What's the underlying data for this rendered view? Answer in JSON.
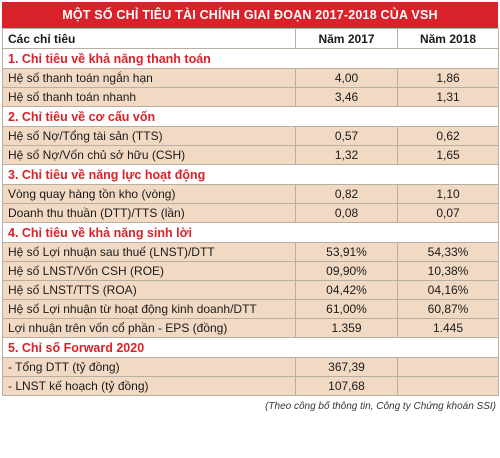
{
  "title": "MỘT SỐ CHỈ TIÊU TÀI CHÍNH GIAI ĐOẠN 2017-2018 CỦA VSH",
  "headers": [
    "Các chỉ tiêu",
    "Năm 2017",
    "Năm 2018"
  ],
  "sections": [
    {
      "name": "1. Chỉ tiêu về khả năng thanh toán",
      "rows": [
        {
          "label": "Hệ số thanh toán ngắn hạn",
          "v2017": "4,00",
          "v2018": "1,86"
        },
        {
          "label": "Hệ số thanh toán nhanh",
          "v2017": "3,46",
          "v2018": "1,31"
        }
      ]
    },
    {
      "name": "2. Chỉ tiêu về cơ cấu vốn",
      "rows": [
        {
          "label": "Hệ số Nợ/Tổng tài sản (TTS)",
          "v2017": "0,57",
          "v2018": "0,62"
        },
        {
          "label": "Hệ số Nợ/Vốn chủ sở hữu (CSH)",
          "v2017": "1,32",
          "v2018": "1,65"
        }
      ]
    },
    {
      "name": "3. Chỉ tiêu về năng lực hoạt động",
      "rows": [
        {
          "label": "Vòng quay hàng tồn kho (vòng)",
          "v2017": "0,82",
          "v2018": "1,10"
        },
        {
          "label": "Doanh thu thuần (DTT)/TTS (lần)",
          "v2017": "0,08",
          "v2018": "0,07"
        }
      ]
    },
    {
      "name": "4. Chỉ tiêu về khả năng sinh lời",
      "rows": [
        {
          "label": "Hệ số Lợi nhuận sau thuế (LNST)/DTT",
          "v2017": "53,91%",
          "v2018": "54,33%"
        },
        {
          "label": "Hệ số LNST/Vốn CSH (ROE)",
          "v2017": "09,90%",
          "v2018": "10,38%"
        },
        {
          "label": "Hệ số LNST/TTS (ROA)",
          "v2017": "04,42%",
          "v2018": "04,16%"
        },
        {
          "label": "Hệ số Lợi nhuận từ hoạt động kinh doanh/DTT",
          "v2017": "61,00%",
          "v2018": "60,87%"
        },
        {
          "label": "Lợi nhuận trên vốn cổ phần - EPS (đồng)",
          "v2017": "1.359",
          "v2018": "1.445"
        }
      ]
    },
    {
      "name": "5. Chỉ số Forward 2020",
      "rows": [
        {
          "label": "- Tổng DTT (tỷ đồng)",
          "v2017": "367,39",
          "v2018": ""
        },
        {
          "label": "- LNST kế hoạch (tỷ đồng)",
          "v2017": "107,68",
          "v2018": ""
        }
      ]
    }
  ],
  "source": "(Theo công bố thông tin, Công ty Chứng khoán SSI)",
  "colors": {
    "accent": "#d92229",
    "row_fill": "#f2d9c4",
    "border": "#b8aea2"
  }
}
